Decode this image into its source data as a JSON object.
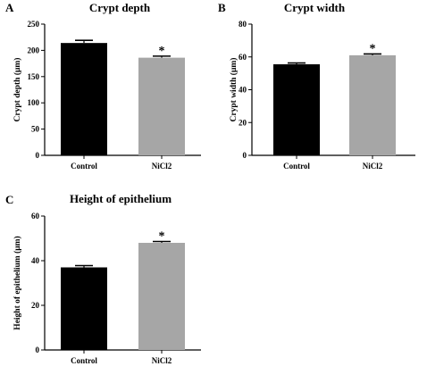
{
  "panels": [
    {
      "letter": "A",
      "chart_data": {
        "type": "bar",
        "title": "Crypt depth",
        "xlabel": "",
        "ylabel": "Crypt depth (μm)",
        "categories": [
          "Control",
          "NiCl2"
        ],
        "values": [
          214,
          186
        ],
        "errors": [
          5,
          3
        ],
        "bar_colors": [
          "#000000",
          "#a6a6a6"
        ],
        "significance": [
          "",
          "*"
        ],
        "ylim": [
          0,
          250
        ],
        "yticks": [
          0,
          50,
          100,
          150,
          200,
          250
        ],
        "grid": false
      }
    },
    {
      "letter": "B",
      "chart_data": {
        "type": "bar",
        "title": "Crypt width",
        "xlabel": "",
        "ylabel": "Crypt width (μm)",
        "categories": [
          "Control",
          "NiCl2"
        ],
        "values": [
          55.5,
          61
        ],
        "errors": [
          0.8,
          0.8
        ],
        "bar_colors": [
          "#000000",
          "#a6a6a6"
        ],
        "significance": [
          "",
          "*"
        ],
        "ylim": [
          0,
          80
        ],
        "yticks": [
          0,
          20,
          40,
          60,
          80
        ],
        "grid": false
      }
    },
    {
      "letter": "C",
      "chart_data": {
        "type": "bar",
        "title": "Height of epithelium",
        "xlabel": "",
        "ylabel": "Height of epithelium (μm)",
        "categories": [
          "Control",
          "NiCl2"
        ],
        "values": [
          37,
          48
        ],
        "errors": [
          0.8,
          0.6
        ],
        "bar_colors": [
          "#000000",
          "#a6a6a6"
        ],
        "significance": [
          "",
          "*"
        ],
        "ylim": [
          0,
          60
        ],
        "yticks": [
          0,
          20,
          40,
          60
        ],
        "grid": false
      }
    }
  ]
}
